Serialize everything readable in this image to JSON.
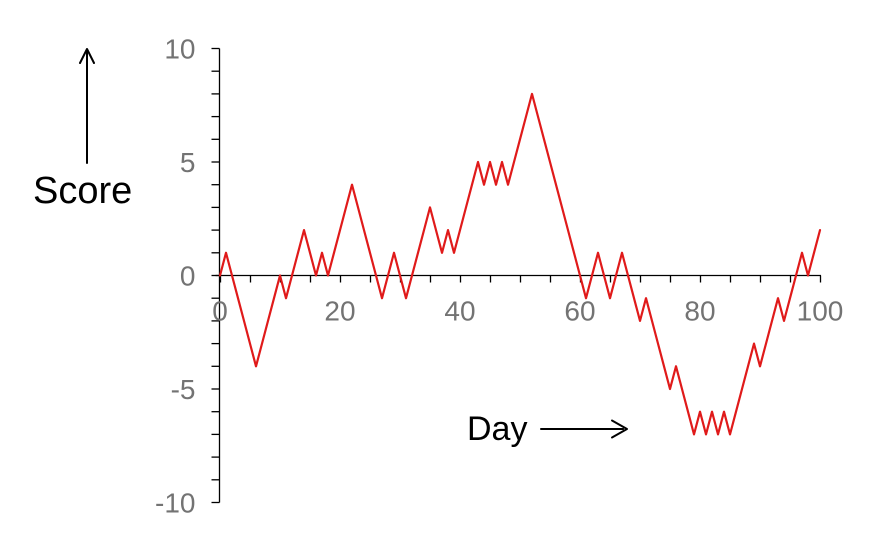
{
  "figure": {
    "background": "#ffffff"
  },
  "chart_data": {
    "type": "line",
    "title": "",
    "xlabel": "Day",
    "ylabel": "Score",
    "x_start": 0,
    "x_step": 1,
    "xlim": [
      0,
      100
    ],
    "ylim": [
      -10,
      10
    ],
    "x_tick_step": 5,
    "y_tick_step": 1,
    "x_tick_labels": [
      0,
      20,
      40,
      60,
      80,
      100
    ],
    "y_tick_labels": [
      10,
      5,
      0,
      -5,
      -10
    ],
    "grid": false,
    "legend": "none",
    "line_color": "#e01a1a",
    "axis_color": "#000000",
    "tick_label_color": "#737373",
    "axis_title_color": "#000000",
    "series": [
      {
        "name": "Score",
        "values": [
          0,
          1,
          0,
          -1,
          -2,
          -3,
          -4,
          -3,
          -2,
          -1,
          0,
          -1,
          0,
          1,
          2,
          1,
          0,
          1,
          0,
          1,
          2,
          3,
          4,
          3,
          2,
          1,
          0,
          -1,
          0,
          1,
          0,
          -1,
          0,
          1,
          2,
          3,
          2,
          1,
          2,
          1,
          2,
          3,
          4,
          5,
          4,
          5,
          4,
          5,
          4,
          5,
          6,
          7,
          8,
          7,
          6,
          5,
          4,
          3,
          2,
          1,
          0,
          -1,
          0,
          1,
          0,
          -1,
          0,
          1,
          0,
          -1,
          -2,
          -1,
          -2,
          -3,
          -4,
          -5,
          -4,
          -5,
          -6,
          -7,
          -6,
          -7,
          -6,
          -7,
          -6,
          -7,
          -6,
          -5,
          -4,
          -3,
          -4,
          -3,
          -2,
          -1,
          -2,
          -1,
          0,
          1,
          0,
          1,
          2
        ]
      }
    ]
  }
}
